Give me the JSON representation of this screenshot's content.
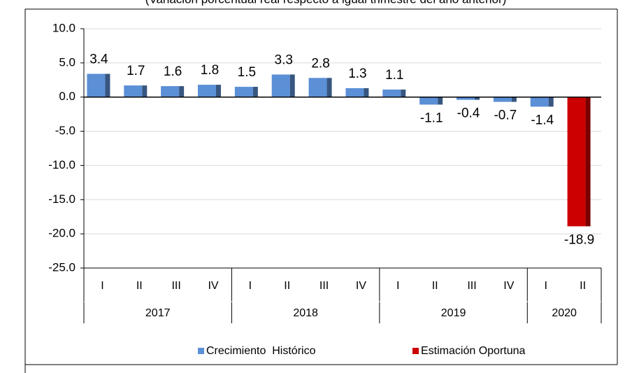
{
  "chart_data": {
    "type": "bar",
    "subtitle": "(Variación porcentual real respecto a igual trimestre del año anterior)",
    "groups": [
      {
        "label": "2017",
        "categories": [
          "I",
          "II",
          "III",
          "IV"
        ]
      },
      {
        "label": "2018",
        "categories": [
          "I",
          "II",
          "III",
          "IV"
        ]
      },
      {
        "label": "2019",
        "categories": [
          "I",
          "II",
          "III",
          "IV"
        ]
      },
      {
        "label": "2020",
        "categories": [
          "I",
          "II"
        ]
      }
    ],
    "series": [
      {
        "name": "Crecimiento  Histórico",
        "color": "#5b8fd6",
        "values": [
          3.4,
          1.7,
          1.6,
          1.8,
          1.5,
          3.3,
          2.8,
          1.3,
          1.1,
          -1.1,
          -0.4,
          -0.7,
          -1.4,
          null
        ]
      },
      {
        "name": "Estimación Oportuna",
        "color": "#cc0000",
        "values": [
          null,
          null,
          null,
          null,
          null,
          null,
          null,
          null,
          null,
          null,
          null,
          null,
          null,
          -18.9
        ]
      }
    ],
    "ylim": [
      -25,
      10
    ],
    "yticks": [
      {
        "value": -25,
        "label": "-25.0"
      },
      {
        "value": -20,
        "label": "-20.0"
      },
      {
        "value": -15,
        "label": "-15.0"
      },
      {
        "value": -10,
        "label": "-10.0"
      },
      {
        "value": -5,
        "label": "-5.0"
      },
      {
        "value": 0,
        "label": "0.0"
      },
      {
        "value": 5,
        "label": "5.0"
      },
      {
        "value": 10,
        "label": "10.0"
      }
    ],
    "grid": true,
    "legend": "bottom"
  }
}
